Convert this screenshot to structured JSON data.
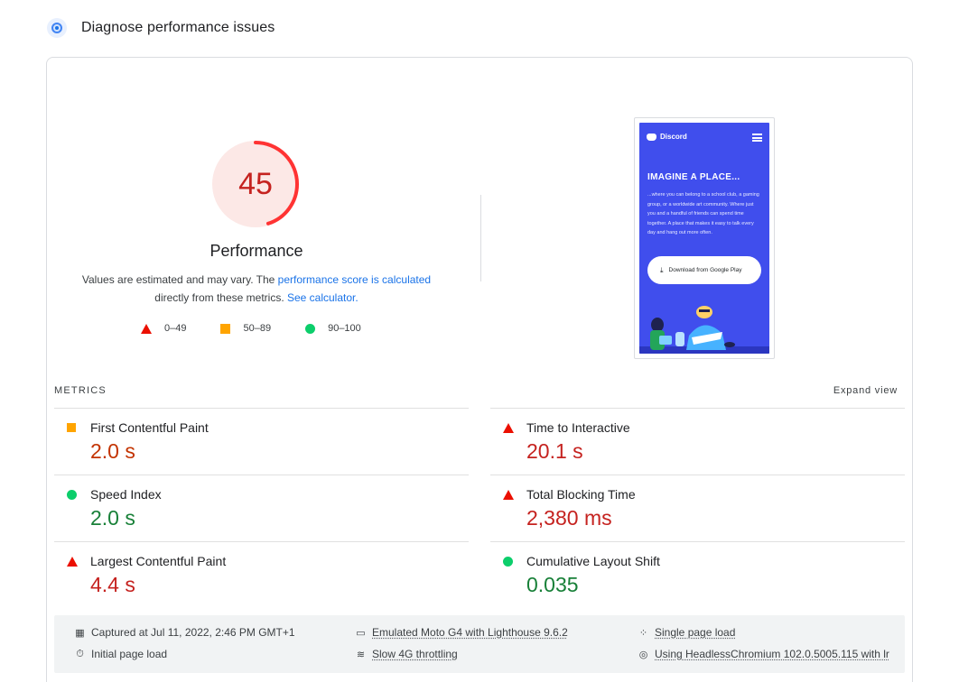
{
  "header": {
    "title": "Diagnose performance issues",
    "icon": "lighthouse-icon"
  },
  "summary": {
    "score": "45",
    "score_fraction": 0.45,
    "score_color": "#eb0f00",
    "title": "Performance",
    "desc_prefix": "Values are estimated and may vary. The ",
    "desc_link_1": "performance score is calculated",
    "desc_middle": "directly from these metrics. ",
    "desc_link_2": "See calculator.",
    "legend": [
      {
        "shape": "triangle",
        "label": "0–49",
        "color": "#eb0f00"
      },
      {
        "shape": "square",
        "label": "50–89",
        "color": "#ffa400"
      },
      {
        "shape": "circle",
        "label": "90–100",
        "color": "#0cce6b"
      }
    ]
  },
  "screenshot": {
    "brand": "Discord",
    "headline": "IMAGINE A PLACE...",
    "body": "...where you can belong to a school club, a gaming group, or a worldwide art community. Where just you and a handful of friends can spend time together. A place that makes it easy to talk every day and hang out more often.",
    "button": "Download from Google Play"
  },
  "metrics": {
    "label": "METRICS",
    "expand": "Expand view",
    "items": [
      {
        "name": "First Contentful Paint",
        "value": "2.0 s",
        "rating": "average"
      },
      {
        "name": "Time to Interactive",
        "value": "20.1 s",
        "rating": "fail"
      },
      {
        "name": "Speed Index",
        "value": "2.0 s",
        "rating": "pass"
      },
      {
        "name": "Total Blocking Time",
        "value": "2,380 ms",
        "rating": "fail"
      },
      {
        "name": "Largest Contentful Paint",
        "value": "4.4 s",
        "rating": "fail"
      },
      {
        "name": "Cumulative Layout Shift",
        "value": "0.035",
        "rating": "pass"
      }
    ]
  },
  "footer": {
    "captured": "Captured at Jul 11, 2022, 2:46 PM GMT+1",
    "initial_load": "Initial page load",
    "device": "Emulated Moto G4 with Lighthouse 9.6.2",
    "throttling": "Slow 4G throttling",
    "single_load": "Single page load",
    "browser": "Using HeadlessChromium 102.0.5005.115 with lr"
  }
}
